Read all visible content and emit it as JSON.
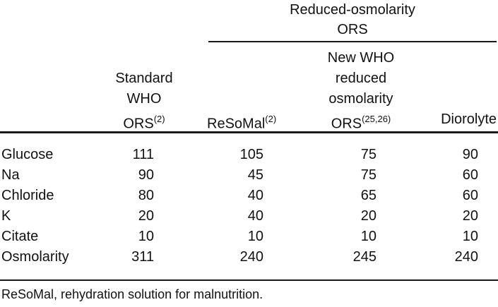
{
  "colors": {
    "background": "#ffffff",
    "text": "#111111",
    "rule": "#1a1a1a"
  },
  "table": {
    "spanner": {
      "line1": "Reduced-osmolarity",
      "line2": "ORS"
    },
    "headers": {
      "standard": {
        "l1": "Standard",
        "l2": "WHO",
        "l3": "ORS",
        "sup": "(2)"
      },
      "resomal": {
        "name": "ReSoMal",
        "sup": "(2)"
      },
      "newwho": {
        "l1": "New WHO",
        "l2": "reduced",
        "l3": "osmolarity",
        "l4": "ORS",
        "sup": "(25,26)"
      },
      "diorolyte": {
        "name": "Diorolyte"
      }
    },
    "rows": [
      {
        "label": "Glucose",
        "v1": "111",
        "v2": "105",
        "v3": "75",
        "v4": "90"
      },
      {
        "label": "Na",
        "v1": "90",
        "v2": "45",
        "v3": "75",
        "v4": "60"
      },
      {
        "label": "Chloride",
        "v1": "80",
        "v2": "40",
        "v3": "65",
        "v4": "60"
      },
      {
        "label": "K",
        "v1": "20",
        "v2": "40",
        "v3": "20",
        "v4": "20"
      },
      {
        "label": "Citate",
        "v1": "10",
        "v2": "10",
        "v3": "10",
        "v4": "10"
      },
      {
        "label": "Osmolarity",
        "v1": "311",
        "v2": "240",
        "v3": "245",
        "v4": "240"
      }
    ],
    "footnote": "ReSoMal, rehydration solution for malnutrition."
  },
  "chart_data": {
    "type": "table",
    "spanner": {
      "label": "Reduced-osmolarity ORS",
      "spans_columns": [
        "ReSoMal(2)",
        "New WHO reduced osmolarity ORS(25,26)",
        "Diorolyte"
      ]
    },
    "columns": [
      "",
      "Standard WHO ORS(2)",
      "ReSoMal(2)",
      "New WHO reduced osmolarity ORS(25,26)",
      "Diorolyte"
    ],
    "rows": [
      [
        "Glucose",
        111,
        105,
        75,
        90
      ],
      [
        "Na",
        90,
        45,
        75,
        60
      ],
      [
        "Chloride",
        80,
        40,
        65,
        60
      ],
      [
        "K",
        20,
        40,
        20,
        20
      ],
      [
        "Citate",
        10,
        10,
        10,
        10
      ],
      [
        "Osmolarity",
        311,
        240,
        245,
        240
      ]
    ],
    "footnote": "ReSoMal, rehydration solution for malnutrition."
  }
}
